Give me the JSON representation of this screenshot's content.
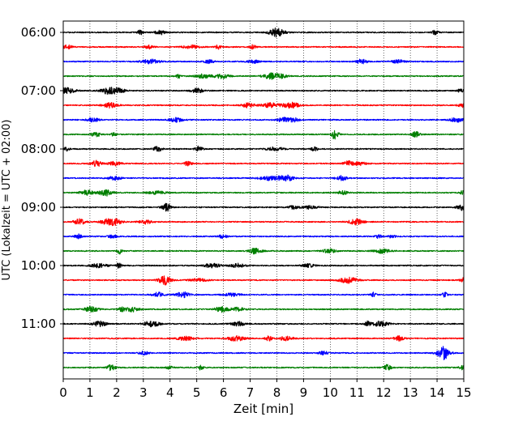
{
  "chart_data": {
    "type": "line",
    "xlabel": "Zeit  [min]",
    "ylabel": "UTC (Lokalzeit = UTC + 02:00)",
    "xlim": [
      0,
      15
    ],
    "x_ticks": [
      "0",
      "1",
      "2",
      "3",
      "4",
      "5",
      "6",
      "7",
      "8",
      "9",
      "10",
      "11",
      "12",
      "13",
      "14",
      "15"
    ],
    "y_ticks": [
      "06:00",
      "07:00",
      "08:00",
      "09:00",
      "10:00",
      "11:00"
    ],
    "grid": "vertical dotted lines at each minute",
    "trace_colors": [
      "#000000",
      "#ff0000",
      "#0000ff",
      "#007f00"
    ],
    "series": [
      {
        "start": "06:00",
        "duration_min": 15
      },
      {
        "start": "06:15",
        "duration_min": 15
      },
      {
        "start": "06:30",
        "duration_min": 15
      },
      {
        "start": "06:45",
        "duration_min": 15
      },
      {
        "start": "07:00",
        "duration_min": 15
      },
      {
        "start": "07:15",
        "duration_min": 15
      },
      {
        "start": "07:30",
        "duration_min": 15
      },
      {
        "start": "07:45",
        "duration_min": 15
      },
      {
        "start": "08:00",
        "duration_min": 15
      },
      {
        "start": "08:15",
        "duration_min": 15
      },
      {
        "start": "08:30",
        "duration_min": 15
      },
      {
        "start": "08:45",
        "duration_min": 15
      },
      {
        "start": "09:00",
        "duration_min": 15
      },
      {
        "start": "09:15",
        "duration_min": 15
      },
      {
        "start": "09:30",
        "duration_min": 15
      },
      {
        "start": "09:45",
        "duration_min": 15
      },
      {
        "start": "10:00",
        "duration_min": 15
      },
      {
        "start": "10:15",
        "duration_min": 15
      },
      {
        "start": "10:30",
        "duration_min": 15
      },
      {
        "start": "10:45",
        "duration_min": 15
      },
      {
        "start": "11:00",
        "duration_min": 15
      },
      {
        "start": "11:15",
        "duration_min": 15
      },
      {
        "start": "11:30",
        "duration_min": 15
      },
      {
        "start": "11:45",
        "duration_min": 15
      }
    ]
  }
}
